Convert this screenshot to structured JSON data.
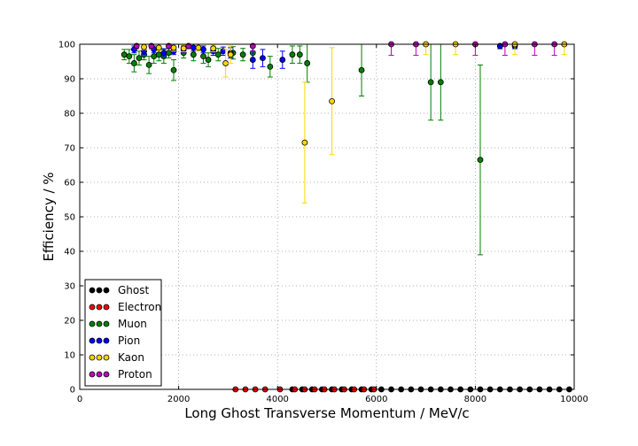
{
  "chart_data": {
    "type": "scatter",
    "title": "",
    "xlabel": "Long Ghost Transverse Momentum / MeV/c",
    "ylabel": "Efficiency / %",
    "xlim": [
      0,
      10000
    ],
    "ylim": [
      0,
      100
    ],
    "x_ticks": [
      0,
      2000,
      4000,
      6000,
      8000,
      10000
    ],
    "y_ticks": [
      0,
      10,
      20,
      30,
      40,
      50,
      60,
      70,
      80,
      90,
      100
    ],
    "grid": true,
    "legend_position": "lower-left",
    "colors": {
      "Ghost": "#000000",
      "Electron": "#ff0000",
      "Muon": "#008000",
      "Pion": "#0000ff",
      "Kaon": "#ffd700",
      "Proton": "#c000c0"
    },
    "series": [
      {
        "name": "Ghost",
        "points": [
          [
            4300,
            0
          ],
          [
            4500,
            0
          ],
          [
            4700,
            0
          ],
          [
            4900,
            0
          ],
          [
            5100,
            0
          ],
          [
            5300,
            0
          ],
          [
            5500,
            0
          ],
          [
            5700,
            0
          ],
          [
            5900,
            0
          ],
          [
            6100,
            0
          ],
          [
            6300,
            0
          ],
          [
            6500,
            0
          ],
          [
            6700,
            0
          ],
          [
            6900,
            0
          ],
          [
            7100,
            0
          ],
          [
            7300,
            0
          ],
          [
            7500,
            0
          ],
          [
            7700,
            0
          ],
          [
            7900,
            0
          ],
          [
            8100,
            0
          ],
          [
            8300,
            0
          ],
          [
            8500,
            0
          ],
          [
            8700,
            0
          ],
          [
            8900,
            0
          ],
          [
            9100,
            0
          ],
          [
            9300,
            0
          ],
          [
            9500,
            0
          ],
          [
            9700,
            0
          ],
          [
            9900,
            0
          ]
        ]
      },
      {
        "name": "Electron",
        "points": [
          [
            3150,
            0
          ],
          [
            3350,
            0
          ],
          [
            3550,
            0
          ],
          [
            3750,
            0
          ],
          [
            4050,
            0
          ],
          [
            4350,
            0
          ],
          [
            4550,
            0
          ],
          [
            4750,
            0
          ],
          [
            4950,
            0
          ],
          [
            5150,
            0
          ],
          [
            5350,
            0
          ],
          [
            5550,
            0
          ],
          [
            5750,
            0
          ],
          [
            5950,
            0
          ]
        ]
      },
      {
        "name": "Muon",
        "points": [
          [
            900,
            97,
            1.5
          ],
          [
            1000,
            96.5,
            2
          ],
          [
            1100,
            94.5,
            2.5
          ],
          [
            1200,
            96,
            2
          ],
          [
            1300,
            97,
            1.5
          ],
          [
            1400,
            94,
            2.5
          ],
          [
            1500,
            96.5,
            2
          ],
          [
            1600,
            97,
            1.8
          ],
          [
            1700,
            96.5,
            2
          ],
          [
            1800,
            97.5,
            1.5
          ],
          [
            1900,
            92.5,
            3
          ],
          [
            2100,
            97.5,
            1.5
          ],
          [
            2300,
            97,
            1.8
          ],
          [
            2500,
            96.5,
            2
          ],
          [
            2600,
            95.5,
            2
          ],
          [
            2800,
            97,
            1.8
          ],
          [
            3100,
            97.5,
            1.8
          ],
          [
            3300,
            97,
            1.8
          ],
          [
            3500,
            97.5,
            1.8
          ],
          [
            3850,
            93.5,
            3
          ],
          [
            4300,
            97,
            2.5
          ],
          [
            4450,
            97,
            2.5
          ],
          [
            4600,
            94.5,
            5.5
          ],
          [
            5700,
            92.5,
            7.5
          ],
          [
            7100,
            89,
            11
          ],
          [
            7300,
            89,
            11
          ],
          [
            8100,
            66.5,
            27.5
          ]
        ]
      },
      {
        "name": "Pion",
        "points": [
          [
            1100,
            98.5,
            1
          ],
          [
            1300,
            98,
            1
          ],
          [
            1500,
            98.5,
            1
          ],
          [
            1700,
            97.5,
            1.2
          ],
          [
            1900,
            98,
            1
          ],
          [
            2100,
            98.5,
            1
          ],
          [
            2300,
            99,
            1
          ],
          [
            2500,
            98.5,
            1
          ],
          [
            2700,
            98,
            1.2
          ],
          [
            2900,
            98,
            1.2
          ],
          [
            3050,
            97.5,
            1.5
          ],
          [
            3500,
            95.5,
            2.5
          ],
          [
            3700,
            96,
            2.5
          ],
          [
            4100,
            95.5,
            2.5
          ],
          [
            8500,
            99.5,
            0.8
          ],
          [
            8800,
            99.5,
            0.8
          ]
        ]
      },
      {
        "name": "Kaon",
        "points": [
          [
            1300,
            99.2,
            0.8
          ],
          [
            1600,
            99,
            1
          ],
          [
            1900,
            99,
            1
          ],
          [
            2100,
            98.8,
            1
          ],
          [
            2400,
            99,
            1
          ],
          [
            2700,
            98.8,
            1
          ],
          [
            2950,
            94.5,
            4
          ],
          [
            3050,
            97,
            2.5
          ],
          [
            4550,
            71.5,
            17.5
          ],
          [
            5100,
            83.5,
            15.5
          ],
          [
            7000,
            100,
            3
          ],
          [
            7600,
            100,
            3
          ],
          [
            8800,
            100,
            3
          ],
          [
            9800,
            100,
            3
          ]
        ]
      },
      {
        "name": "Proton",
        "points": [
          [
            1150,
            99.5,
            0.8
          ],
          [
            1450,
            99.5,
            0.8
          ],
          [
            1800,
            99.5,
            0.8
          ],
          [
            2200,
            99.5,
            0.8
          ],
          [
            3500,
            99.5,
            1.5
          ],
          [
            6300,
            100,
            3.2
          ],
          [
            6800,
            100,
            3.2
          ],
          [
            8000,
            100,
            3.2
          ],
          [
            8600,
            100,
            3.2
          ],
          [
            9200,
            100,
            3.2
          ],
          [
            9600,
            100,
            3.2
          ]
        ]
      }
    ]
  }
}
